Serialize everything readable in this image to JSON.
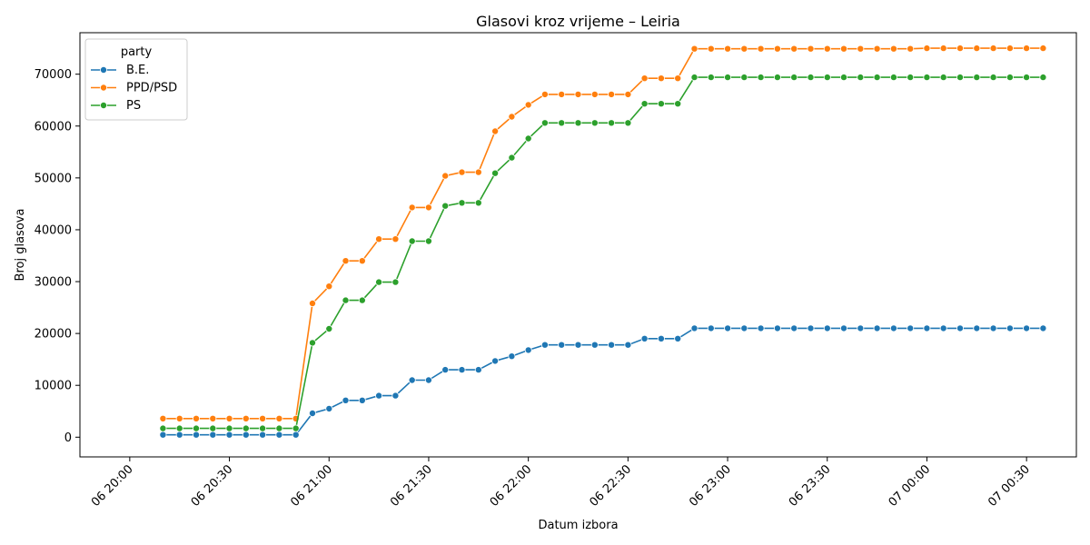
{
  "chart_data": {
    "type": "line",
    "title": "Glasovi kroz vrijeme – Leiria",
    "xlabel": "Datum izbora",
    "ylabel": "Broj glasova",
    "x_ticks": [
      "06 20:00",
      "06 20:30",
      "06 21:00",
      "06 21:30",
      "06 22:00",
      "06 22:30",
      "06 23:00",
      "06 23:30",
      "07 00:00",
      "07 00:30"
    ],
    "y_ticks": [
      0,
      10000,
      20000,
      30000,
      40000,
      50000,
      60000,
      70000
    ],
    "ylim": [
      -3800,
      78000
    ],
    "grid": false,
    "legend": {
      "title": "party",
      "placement": "top-left"
    },
    "x": [
      "06 20:10",
      "06 20:15",
      "06 20:20",
      "06 20:25",
      "06 20:30",
      "06 20:35",
      "06 20:40",
      "06 20:45",
      "06 20:50",
      "06 20:55",
      "06 21:00",
      "06 21:05",
      "06 21:10",
      "06 21:15",
      "06 21:20",
      "06 21:25",
      "06 21:30",
      "06 21:35",
      "06 21:40",
      "06 21:45",
      "06 21:50",
      "06 21:55",
      "06 22:00",
      "06 22:05",
      "06 22:10",
      "06 22:15",
      "06 22:20",
      "06 22:25",
      "06 22:30",
      "06 22:35",
      "06 22:40",
      "06 22:45",
      "06 22:50",
      "06 22:55",
      "06 23:00",
      "06 23:05",
      "06 23:10",
      "06 23:15",
      "06 23:20",
      "06 23:25",
      "06 23:30",
      "06 23:35",
      "06 23:40",
      "06 23:45",
      "06 23:50",
      "06 23:55",
      "07 00:00",
      "07 00:05",
      "07 00:10",
      "07 00:15",
      "07 00:20",
      "07 00:25",
      "07 00:30",
      "07 00:35"
    ],
    "series": [
      {
        "name": "B.E.",
        "color": "#1f77b4",
        "values": [
          450,
          450,
          450,
          450,
          450,
          450,
          450,
          450,
          450,
          4600,
          5500,
          7100,
          7100,
          8000,
          8000,
          11000,
          11000,
          13000,
          13000,
          13000,
          14700,
          15600,
          16800,
          17800,
          17800,
          17800,
          17800,
          17800,
          17800,
          19000,
          19000,
          19000,
          21000,
          21000,
          21000,
          21000,
          21000,
          21000,
          21000,
          21000,
          21000,
          21000,
          21000,
          21000,
          21000,
          21000,
          21000,
          21000,
          21000,
          21000,
          21000,
          21000,
          21000,
          21000
        ]
      },
      {
        "name": "PPD/PSD",
        "color": "#ff7f0e",
        "values": [
          3600,
          3600,
          3600,
          3600,
          3600,
          3600,
          3600,
          3600,
          3600,
          25800,
          29100,
          34000,
          34000,
          38200,
          38200,
          44300,
          44300,
          50400,
          51100,
          51100,
          59000,
          61800,
          64100,
          66100,
          66100,
          66100,
          66100,
          66100,
          66100,
          69200,
          69200,
          69200,
          74900,
          74900,
          74900,
          74900,
          74900,
          74900,
          74900,
          74900,
          74900,
          74900,
          74900,
          74900,
          74900,
          74900,
          75000,
          75000,
          75000,
          75000,
          75000,
          75000,
          75000,
          75000
        ]
      },
      {
        "name": "PS",
        "color": "#2ca02c",
        "values": [
          1700,
          1700,
          1700,
          1700,
          1700,
          1700,
          1700,
          1700,
          1700,
          18200,
          20900,
          26400,
          26400,
          29900,
          29900,
          37800,
          37800,
          44600,
          45200,
          45200,
          50900,
          53900,
          57600,
          60600,
          60600,
          60600,
          60600,
          60600,
          60600,
          64300,
          64300,
          64300,
          69400,
          69400,
          69400,
          69400,
          69400,
          69400,
          69400,
          69400,
          69400,
          69400,
          69400,
          69400,
          69400,
          69400,
          69400,
          69400,
          69400,
          69400,
          69400,
          69400,
          69400,
          69400
        ]
      }
    ]
  }
}
